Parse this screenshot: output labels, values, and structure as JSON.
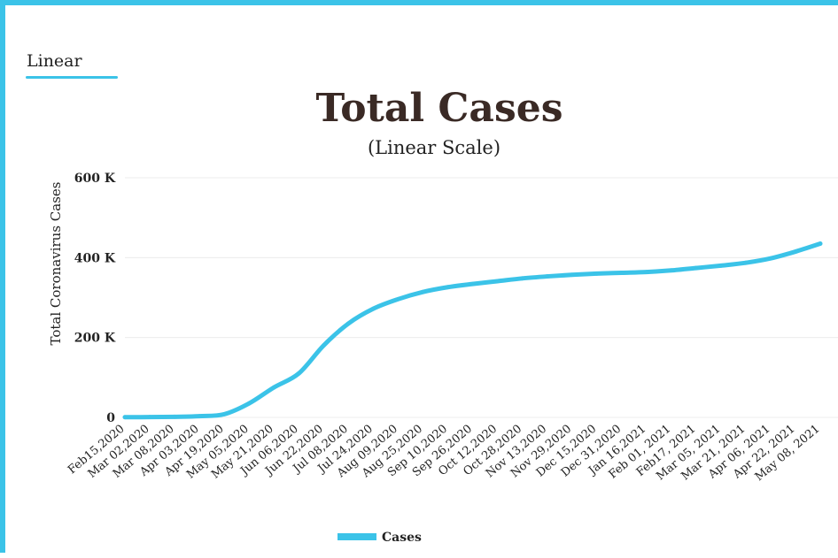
{
  "tab": {
    "label": "Linear",
    "accent": "#3bc3e8"
  },
  "chart_data": {
    "type": "line",
    "title": "Total Cases",
    "subtitle": "(Linear Scale)",
    "xlabel": "",
    "ylabel": "Total Coronavirus Cases",
    "ylim": [
      0,
      600000
    ],
    "yticks": [
      {
        "value": 0,
        "label": "0"
      },
      {
        "value": 200000,
        "label": "200 K"
      },
      {
        "value": 400000,
        "label": "400 K"
      },
      {
        "value": 600000,
        "label": "600 K"
      }
    ],
    "grid": true,
    "legend": "bottom",
    "categories": [
      "Feb15,2020",
      "Mar 02,2020",
      "Mar 08,2020",
      "Apr 03,2020",
      "Apr 19,2020",
      "May 05,2020",
      "May 21,2020",
      "Jun 06,2020",
      "Jun 22,2020",
      "Jul 08,2020",
      "Jul 24,2020",
      "Aug 09,2020",
      "Aug 25,2020",
      "Sep 10,2020",
      "Sep 26,2020",
      "Oct 12,2020",
      "Oct 28,2020",
      "Nov 13,2020",
      "Nov 29,2020",
      "Dec 15,2020",
      "Dec 31,2020",
      "Jan 16,2021",
      "Feb 01, 2021",
      "Feb17, 2021",
      "Mar 05, 2021",
      "Mar 21, 2021",
      "Apr 06, 2021",
      "Apr 22, 2021",
      "May 08, 2021"
    ],
    "series": [
      {
        "name": "Cases",
        "color": "#3bc3e8",
        "values": [
          500,
          800,
          1500,
          3000,
          8000,
          35000,
          75000,
          110000,
          180000,
          235000,
          272000,
          296000,
          314000,
          326000,
          334000,
          341000,
          348000,
          353000,
          357000,
          360000,
          362000,
          364000,
          368000,
          374000,
          380000,
          387000,
          398000,
          415000,
          435000
        ]
      }
    ]
  }
}
